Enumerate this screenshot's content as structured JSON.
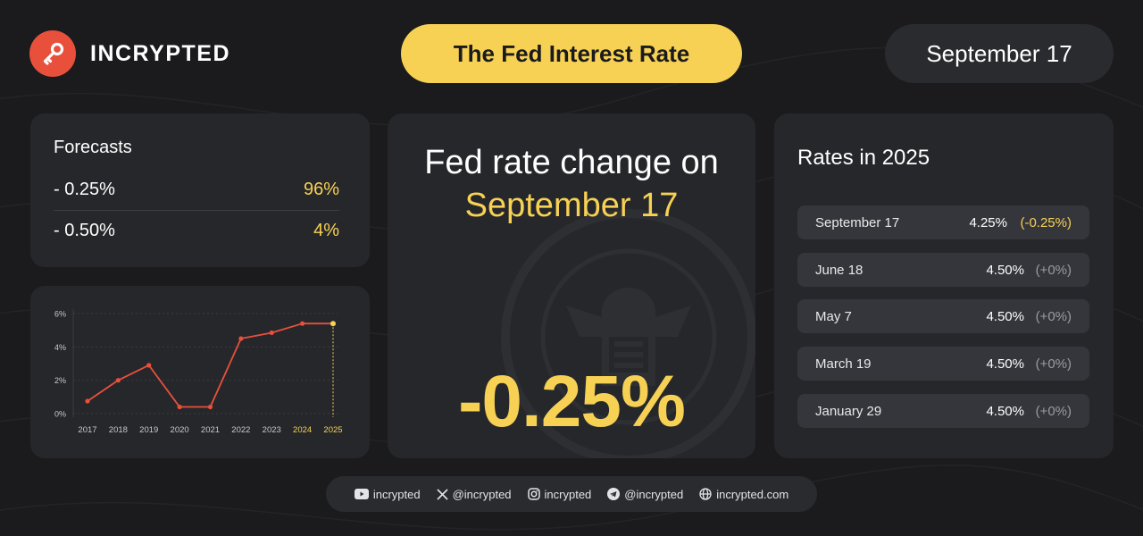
{
  "brand": {
    "name": "INCRYPTED",
    "accent": "#e8503c"
  },
  "header": {
    "title": "The Fed Interest Rate",
    "date": "September 17"
  },
  "forecasts": {
    "title": "Forecasts",
    "items": [
      {
        "label": "- 0.25%",
        "value": "96%"
      },
      {
        "label": "- 0.50%",
        "value": "4%"
      }
    ]
  },
  "main": {
    "line1": "Fed rate change on",
    "line2": "September 17",
    "change": "-0.25%"
  },
  "rates": {
    "title": "Rates in 2025",
    "rows": [
      {
        "date": "September 17",
        "rate": "4.25%",
        "change": "(-0.25%)"
      },
      {
        "date": "June 18",
        "rate": "4.50%",
        "change": "(+0%)"
      },
      {
        "date": "May 7",
        "rate": "4.50%",
        "change": "(+0%)"
      },
      {
        "date": "March 19",
        "rate": "4.50%",
        "change": "(+0%)"
      },
      {
        "date": "January 29",
        "rate": "4.50%",
        "change": "(+0%)"
      }
    ]
  },
  "footer": {
    "youtube": "incrypted",
    "x": "@incrypted",
    "instagram": "incrypted",
    "telegram": "@incrypted",
    "website": "incrypted.com"
  },
  "colors": {
    "background": "#1b1b1d",
    "card": "#26272b",
    "accent_yellow": "#f7d154",
    "line_red": "#e8503c"
  },
  "chart_data": {
    "type": "line",
    "categories": [
      "2017",
      "2018",
      "2019",
      "2020",
      "2021",
      "2022",
      "2023",
      "2024",
      "2025"
    ],
    "values": [
      0.75,
      2.0,
      2.9,
      0.4,
      0.4,
      4.5,
      4.85,
      5.4,
      5.4
    ],
    "ylim": [
      0,
      6
    ],
    "yticks": [
      "0%",
      "2%",
      "4%",
      "6%"
    ],
    "highlighted_categories": [
      "2024",
      "2025"
    ],
    "grid": true
  }
}
